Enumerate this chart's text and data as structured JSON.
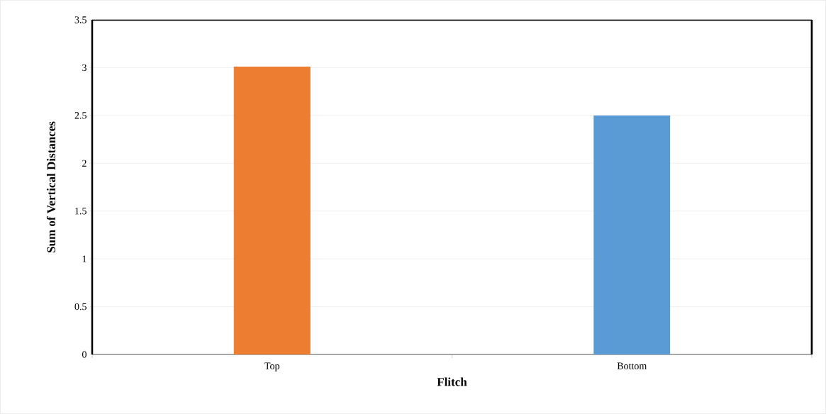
{
  "chart_data": {
    "type": "bar",
    "xlabel": "Flitch",
    "ylabel": "Sum of Vertical Distances",
    "categories": [
      "Top",
      "Bottom"
    ],
    "values": [
      3.01,
      2.5
    ],
    "colors": [
      "#ed7d31",
      "#5b9bd5"
    ],
    "ylim": [
      0,
      3.5
    ],
    "yticks": [
      0,
      0.5,
      1,
      1.5,
      2,
      2.5,
      3,
      3.5
    ],
    "grid": "y"
  }
}
